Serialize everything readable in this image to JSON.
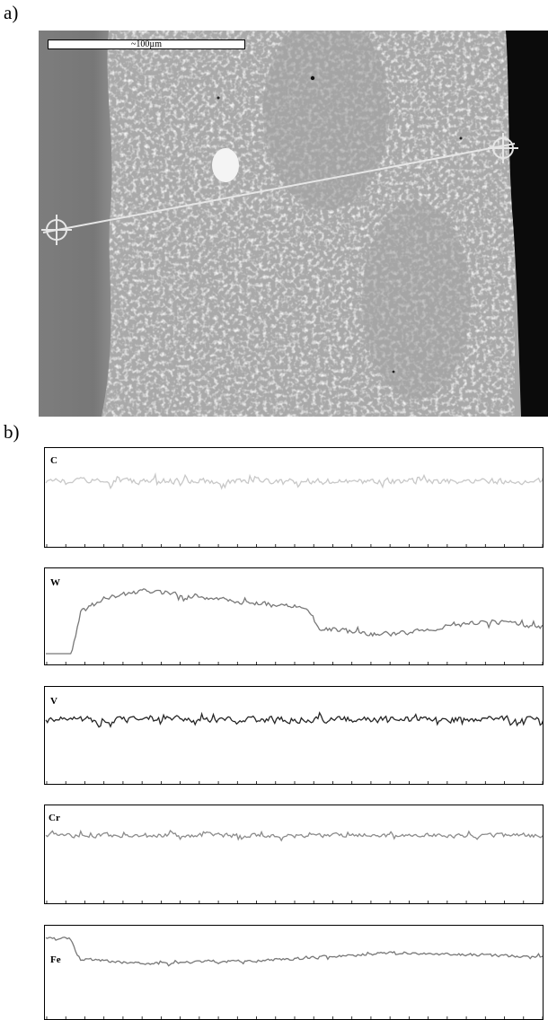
{
  "figure": {
    "panel_a_label": "a)",
    "panel_b_label": "b)",
    "scale_bar_text": "~100µm"
  },
  "chart_data": [
    {
      "type": "line",
      "series": [
        {
          "name": "C",
          "level": 0.33,
          "noise": 0.08,
          "color": "#c8c8c8"
        }
      ],
      "grid": false
    },
    {
      "type": "line",
      "series": [
        {
          "name": "W",
          "profile": [
            [
              0,
              0.95
            ],
            [
              0.05,
              0.92
            ],
            [
              0.07,
              0.45
            ],
            [
              0.12,
              0.3
            ],
            [
              0.2,
              0.22
            ],
            [
              0.3,
              0.3
            ],
            [
              0.4,
              0.35
            ],
            [
              0.52,
              0.4
            ],
            [
              0.55,
              0.6
            ],
            [
              0.65,
              0.68
            ],
            [
              0.75,
              0.65
            ],
            [
              0.82,
              0.58
            ],
            [
              0.9,
              0.55
            ],
            [
              1,
              0.6
            ]
          ],
          "noise": 0.07,
          "color": "#787878"
        }
      ],
      "grid": false
    },
    {
      "type": "line",
      "series": [
        {
          "name": "V",
          "level": 0.33,
          "noise": 0.09,
          "color": "#262626"
        }
      ],
      "grid": false
    },
    {
      "type": "line",
      "series": [
        {
          "name": "Cr",
          "level": 0.3,
          "noise": 0.06,
          "color": "#8c8c8c"
        }
      ],
      "grid": false
    },
    {
      "type": "line",
      "series": [
        {
          "name": "Fe",
          "profile": [
            [
              0,
              0.13
            ],
            [
              0.05,
              0.14
            ],
            [
              0.07,
              0.35
            ],
            [
              0.2,
              0.4
            ],
            [
              0.5,
              0.35
            ],
            [
              0.7,
              0.28
            ],
            [
              1,
              0.33
            ]
          ],
          "noise": 0.04,
          "color": "#787878"
        }
      ],
      "grid": false
    }
  ]
}
